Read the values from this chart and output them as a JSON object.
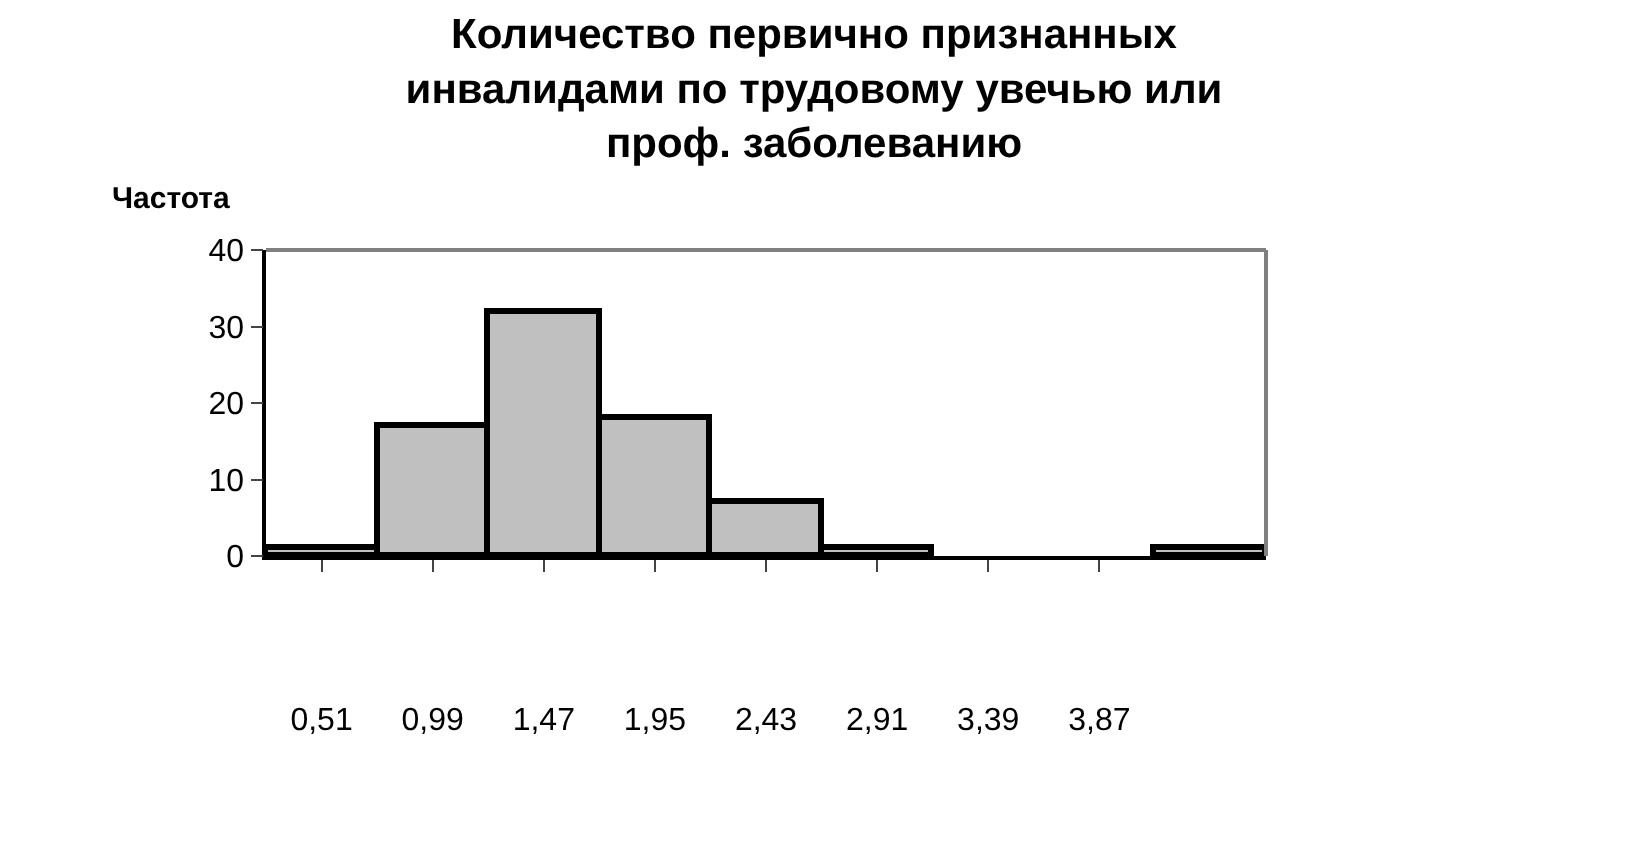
{
  "chart_data": {
    "type": "bar",
    "title": "Количество первично признанных\nинвалидами по трудовому увечью или\nпроф. заболеванию",
    "ylabel": "Частота",
    "categories": [
      "0,51",
      "0,99",
      "1,47",
      "1,95",
      "2,43",
      "2,91",
      "3,39",
      "3,87",
      null
    ],
    "values": [
      1,
      17,
      32,
      18,
      7,
      1,
      0,
      0,
      1
    ],
    "color": "#c0c0c0",
    "ylim": [
      0,
      40
    ],
    "yticks": [
      0,
      10,
      20,
      30,
      40
    ],
    "legend": false
  }
}
